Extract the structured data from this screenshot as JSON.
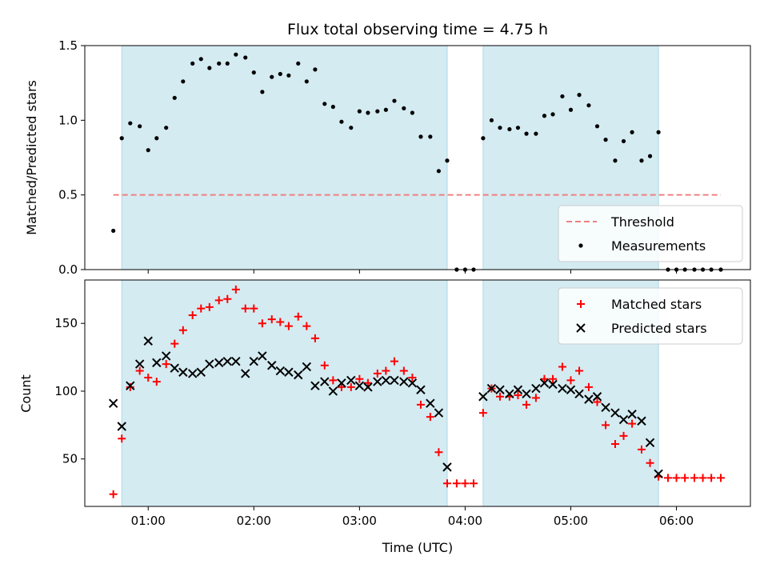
{
  "chart_data": [
    {
      "type": "scatter",
      "title": "Flux total observing time = 4.75 h",
      "ylabel": "Matched/Predicted stars",
      "xlabel": "",
      "ylim": [
        0,
        1.5
      ],
      "yticks": [
        0.0,
        0.5,
        1.0,
        1.5
      ],
      "ytick_labels": [
        "0.0",
        "0.5",
        "1.0",
        "1.5"
      ],
      "xlim": [
        0.4,
        6.7
      ],
      "xticks": [
        1,
        2,
        3,
        4,
        5,
        6
      ],
      "shaded_ranges": [
        [
          0.75,
          3.83
        ],
        [
          4.17,
          5.83
        ]
      ],
      "threshold": {
        "name": "Threshold",
        "y": 0.5,
        "x_range": [
          0.67,
          6.42
        ],
        "color": "#f08080"
      },
      "legend": {
        "placement": "lower-right",
        "entries": [
          "Threshold",
          "Measurements"
        ]
      },
      "series": [
        {
          "name": "Measurements",
          "marker": "dot",
          "color": "#000000",
          "points": [
            [
              0.67,
              0.26
            ],
            [
              0.75,
              0.88
            ],
            [
              0.83,
              0.98
            ],
            [
              0.92,
              0.96
            ],
            [
              1.0,
              0.8
            ],
            [
              1.08,
              0.88
            ],
            [
              1.17,
              0.95
            ],
            [
              1.25,
              1.15
            ],
            [
              1.33,
              1.26
            ],
            [
              1.42,
              1.38
            ],
            [
              1.5,
              1.41
            ],
            [
              1.58,
              1.35
            ],
            [
              1.67,
              1.38
            ],
            [
              1.75,
              1.38
            ],
            [
              1.83,
              1.44
            ],
            [
              1.92,
              1.42
            ],
            [
              2.0,
              1.32
            ],
            [
              2.08,
              1.19
            ],
            [
              2.17,
              1.29
            ],
            [
              2.25,
              1.31
            ],
            [
              2.33,
              1.3
            ],
            [
              2.42,
              1.38
            ],
            [
              2.5,
              1.26
            ],
            [
              2.58,
              1.34
            ],
            [
              2.67,
              1.11
            ],
            [
              2.75,
              1.09
            ],
            [
              2.83,
              0.99
            ],
            [
              2.92,
              0.95
            ],
            [
              3.0,
              1.06
            ],
            [
              3.08,
              1.05
            ],
            [
              3.17,
              1.06
            ],
            [
              3.25,
              1.07
            ],
            [
              3.33,
              1.13
            ],
            [
              3.42,
              1.08
            ],
            [
              3.5,
              1.05
            ],
            [
              3.58,
              0.89
            ],
            [
              3.67,
              0.89
            ],
            [
              3.75,
              0.66
            ],
            [
              3.83,
              0.73
            ],
            [
              3.92,
              0
            ],
            [
              4.0,
              0
            ],
            [
              4.08,
              0
            ],
            [
              4.17,
              0.88
            ],
            [
              4.25,
              1.0
            ],
            [
              4.33,
              0.95
            ],
            [
              4.42,
              0.94
            ],
            [
              4.5,
              0.95
            ],
            [
              4.58,
              0.91
            ],
            [
              4.67,
              0.91
            ],
            [
              4.75,
              1.03
            ],
            [
              4.83,
              1.04
            ],
            [
              4.92,
              1.16
            ],
            [
              5.0,
              1.07
            ],
            [
              5.08,
              1.17
            ],
            [
              5.17,
              1.1
            ],
            [
              5.25,
              0.96
            ],
            [
              5.33,
              0.87
            ],
            [
              5.42,
              0.73
            ],
            [
              5.5,
              0.86
            ],
            [
              5.58,
              0.92
            ],
            [
              5.67,
              0.73
            ],
            [
              5.75,
              0.76
            ],
            [
              5.83,
              0.92
            ],
            [
              5.92,
              0
            ],
            [
              6.0,
              0
            ],
            [
              6.08,
              0
            ],
            [
              6.17,
              0
            ],
            [
              6.25,
              0
            ],
            [
              6.33,
              0
            ],
            [
              6.42,
              0
            ]
          ]
        }
      ]
    },
    {
      "type": "scatter",
      "title": "",
      "xlabel": "Time (UTC)",
      "ylabel": "Count",
      "ylim": [
        15,
        182
      ],
      "yticks": [
        50,
        100,
        150
      ],
      "ytick_labels": [
        "50",
        "100",
        "150"
      ],
      "xlim": [
        0.4,
        6.7
      ],
      "xticks": [
        1,
        2,
        3,
        4,
        5,
        6
      ],
      "xtick_labels": [
        "01:00",
        "02:00",
        "03:00",
        "04:00",
        "05:00",
        "06:00"
      ],
      "shaded_ranges": [
        [
          0.75,
          3.83
        ],
        [
          4.17,
          5.83
        ]
      ],
      "legend": {
        "placement": "upper-right",
        "entries": [
          "Matched stars",
          "Predicted stars"
        ]
      },
      "series": [
        {
          "name": "Matched stars",
          "marker": "plus",
          "color": "#ff0000",
          "points": [
            [
              0.67,
              24
            ],
            [
              0.75,
              65
            ],
            [
              0.83,
              103
            ],
            [
              0.92,
              115
            ],
            [
              1.0,
              110
            ],
            [
              1.08,
              107
            ],
            [
              1.17,
              120
            ],
            [
              1.25,
              135
            ],
            [
              1.33,
              145
            ],
            [
              1.42,
              156
            ],
            [
              1.5,
              161
            ],
            [
              1.58,
              162
            ],
            [
              1.67,
              167
            ],
            [
              1.75,
              168
            ],
            [
              1.83,
              175
            ],
            [
              1.92,
              161
            ],
            [
              2.0,
              161
            ],
            [
              2.08,
              150
            ],
            [
              2.17,
              153
            ],
            [
              2.25,
              151
            ],
            [
              2.33,
              148
            ],
            [
              2.42,
              155
            ],
            [
              2.5,
              148
            ],
            [
              2.58,
              139
            ],
            [
              2.67,
              119
            ],
            [
              2.75,
              108
            ],
            [
              2.83,
              103
            ],
            [
              2.92,
              103
            ],
            [
              3.0,
              109
            ],
            [
              3.08,
              106
            ],
            [
              3.17,
              113
            ],
            [
              3.25,
              115
            ],
            [
              3.33,
              122
            ],
            [
              3.42,
              115
            ],
            [
              3.5,
              110
            ],
            [
              3.58,
              90
            ],
            [
              3.67,
              81
            ],
            [
              3.75,
              55
            ],
            [
              3.83,
              32
            ],
            [
              3.92,
              32
            ],
            [
              4.0,
              32
            ],
            [
              4.08,
              32
            ],
            [
              4.17,
              84
            ],
            [
              4.25,
              102
            ],
            [
              4.33,
              96
            ],
            [
              4.42,
              96
            ],
            [
              4.5,
              97
            ],
            [
              4.58,
              90
            ],
            [
              4.67,
              95
            ],
            [
              4.75,
              109
            ],
            [
              4.83,
              109
            ],
            [
              4.92,
              118
            ],
            [
              5.0,
              108
            ],
            [
              5.08,
              115
            ],
            [
              5.17,
              103
            ],
            [
              5.25,
              92
            ],
            [
              5.33,
              75
            ],
            [
              5.42,
              61
            ],
            [
              5.5,
              67
            ],
            [
              5.58,
              76
            ],
            [
              5.67,
              57
            ],
            [
              5.75,
              47
            ],
            [
              5.83,
              37
            ],
            [
              5.92,
              36
            ],
            [
              6.0,
              36
            ],
            [
              6.08,
              36
            ],
            [
              6.17,
              36
            ],
            [
              6.25,
              36
            ],
            [
              6.33,
              36
            ],
            [
              6.42,
              36
            ]
          ]
        },
        {
          "name": "Predicted stars",
          "marker": "x",
          "color": "#000000",
          "points": [
            [
              0.67,
              91
            ],
            [
              0.75,
              74
            ],
            [
              0.83,
              104
            ],
            [
              0.92,
              120
            ],
            [
              1.0,
              137
            ],
            [
              1.08,
              121
            ],
            [
              1.17,
              126
            ],
            [
              1.25,
              117
            ],
            [
              1.33,
              114
            ],
            [
              1.42,
              113
            ],
            [
              1.5,
              114
            ],
            [
              1.58,
              120
            ],
            [
              1.67,
              121
            ],
            [
              1.75,
              122
            ],
            [
              1.83,
              122
            ],
            [
              1.92,
              113
            ],
            [
              2.0,
              122
            ],
            [
              2.08,
              126
            ],
            [
              2.17,
              119
            ],
            [
              2.25,
              115
            ],
            [
              2.33,
              114
            ],
            [
              2.42,
              112
            ],
            [
              2.5,
              118
            ],
            [
              2.58,
              104
            ],
            [
              2.67,
              107
            ],
            [
              2.75,
              100
            ],
            [
              2.83,
              106
            ],
            [
              2.92,
              108
            ],
            [
              3.0,
              104
            ],
            [
              3.08,
              103
            ],
            [
              3.17,
              107
            ],
            [
              3.25,
              108
            ],
            [
              3.33,
              108
            ],
            [
              3.42,
              107
            ],
            [
              3.5,
              106
            ],
            [
              3.58,
              101
            ],
            [
              3.67,
              91
            ],
            [
              3.75,
              84
            ],
            [
              3.83,
              44
            ],
            [
              4.17,
              96
            ],
            [
              4.25,
              102
            ],
            [
              4.33,
              101
            ],
            [
              4.42,
              98
            ],
            [
              4.5,
              101
            ],
            [
              4.58,
              98
            ],
            [
              4.67,
              102
            ],
            [
              4.75,
              106
            ],
            [
              4.83,
              105
            ],
            [
              4.92,
              102
            ],
            [
              5.0,
              101
            ],
            [
              5.08,
              98
            ],
            [
              5.17,
              94
            ],
            [
              5.25,
              96
            ],
            [
              5.33,
              88
            ],
            [
              5.42,
              84
            ],
            [
              5.5,
              79
            ],
            [
              5.58,
              83
            ],
            [
              5.67,
              78
            ],
            [
              5.75,
              62
            ],
            [
              5.83,
              39
            ]
          ]
        }
      ]
    }
  ]
}
